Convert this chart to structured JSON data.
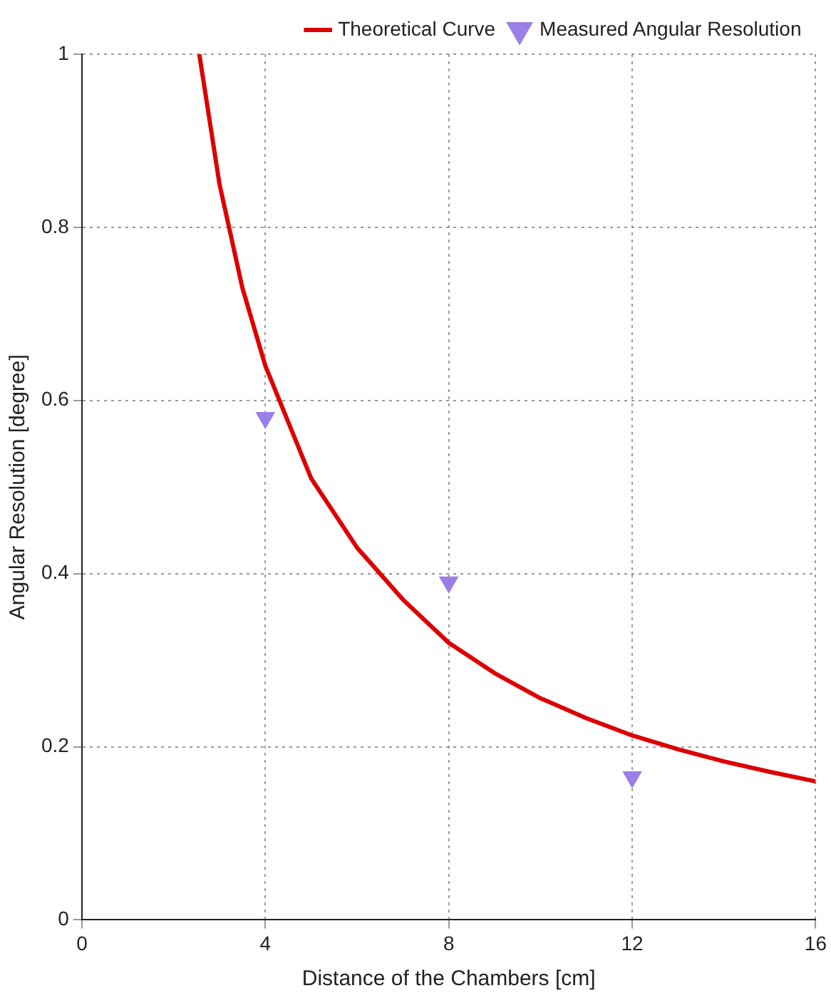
{
  "chart_data": {
    "type": "line",
    "xlabel": "Distance of the Chambers [cm]",
    "ylabel": "Angular Resolution [degree]",
    "xlim": [
      0,
      16
    ],
    "ylim": [
      0,
      1
    ],
    "xticks": [
      0,
      4,
      8,
      12,
      16
    ],
    "yticks": [
      0,
      0.2,
      0.4,
      0.6,
      0.8,
      1
    ],
    "grid": true,
    "legend": "top right",
    "series": [
      {
        "name": "Theoretical Curve",
        "color": "#dd0000",
        "marker": "none",
        "line_style": "solid",
        "x": [
          2.56,
          3,
          3.5,
          4,
          5,
          6,
          7,
          8,
          9,
          10,
          11,
          12,
          13,
          14,
          15,
          16
        ],
        "values": [
          1.0,
          0.85,
          0.73,
          0.64,
          0.51,
          0.43,
          0.37,
          0.32,
          0.285,
          0.256,
          0.233,
          0.213,
          0.197,
          0.183,
          0.171,
          0.16
        ]
      },
      {
        "name": "Measured Angular Resolution",
        "type": "scatter",
        "color": "#9b7fe8",
        "marker": "triangle",
        "x": [
          4,
          8,
          12
        ],
        "values": [
          0.58,
          0.39,
          0.165
        ]
      }
    ]
  }
}
